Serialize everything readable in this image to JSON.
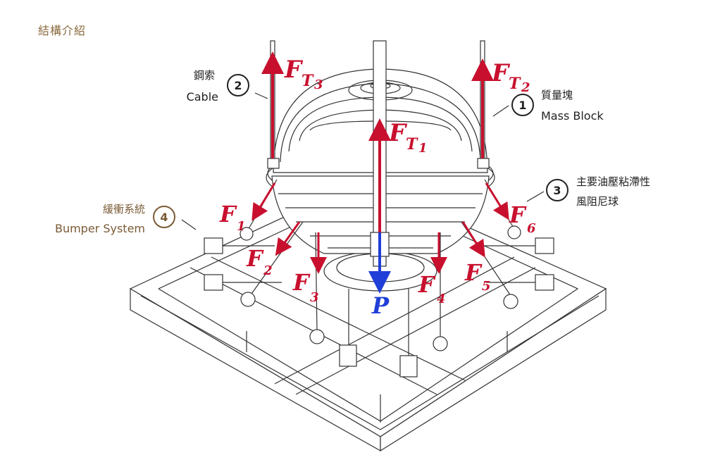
{
  "title": "結構介紹",
  "callouts": [
    {
      "number": "1",
      "zh": "質量塊",
      "en": "Mass Block"
    },
    {
      "number": "2",
      "zh": "鋼索",
      "en": "Cable"
    },
    {
      "number": "3",
      "zh_line1": "主要油壓粘滯性",
      "zh_line2": "風阻尼球"
    },
    {
      "number": "4",
      "zh": "緩衝系統",
      "en": "Bumper System"
    }
  ],
  "forces": {
    "tension": [
      {
        "symbol": "F",
        "sub": "T",
        "index": "1"
      },
      {
        "symbol": "F",
        "sub": "T",
        "index": "2"
      },
      {
        "symbol": "F",
        "sub": "T",
        "index": "3"
      }
    ],
    "dampers": [
      {
        "symbol": "F",
        "index": "1"
      },
      {
        "symbol": "F",
        "index": "2"
      },
      {
        "symbol": "F",
        "index": "3"
      },
      {
        "symbol": "F",
        "index": "4"
      },
      {
        "symbol": "F",
        "index": "5"
      },
      {
        "symbol": "F",
        "index": "6"
      }
    ],
    "weight": {
      "symbol": "P"
    }
  },
  "colors": {
    "force": "#c8102e",
    "weight": "#1f3fd8",
    "accent": "#8a6a3e",
    "line": "#333333"
  }
}
